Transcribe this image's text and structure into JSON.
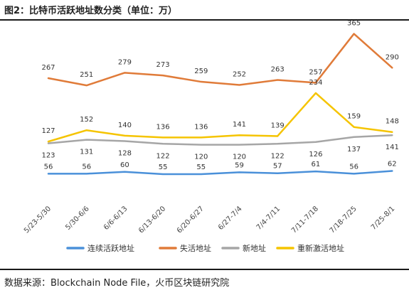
{
  "title": "图2：比特币活跃地址数分类（单位：万）",
  "source": "数据来源：Blockchain Node File，火币区块链研究院",
  "chart_data": {
    "type": "line",
    "categories": [
      "5/23-5/30",
      "5/30-6/6",
      "6/6-6/13",
      "6/13-6/20",
      "6/20-6/27",
      "6/27-7/4",
      "7/4-7/11",
      "7/11-7/18",
      "7/18-7/25",
      "7/25-8/1"
    ],
    "series": [
      {
        "name": "连续活跃地址",
        "color": "#4a90d9",
        "values": [
          56,
          56,
          60,
          55,
          55,
          59,
          57,
          61,
          56,
          62
        ]
      },
      {
        "name": "失活地址",
        "color": "#e07b39",
        "values": [
          267,
          251,
          279,
          273,
          259,
          252,
          263,
          257,
          365,
          290
        ]
      },
      {
        "name": "新地址",
        "color": "#a6a6a6",
        "values": [
          123,
          131,
          128,
          122,
          120,
          120,
          122,
          126,
          137,
          141
        ]
      },
      {
        "name": "重新激活地址",
        "color": "#f5c400",
        "values": [
          127,
          152,
          140,
          136,
          136,
          141,
          139,
          234,
          159,
          148
        ]
      }
    ],
    "ylim": [
      0,
      380
    ],
    "legend_position": "bottom"
  }
}
